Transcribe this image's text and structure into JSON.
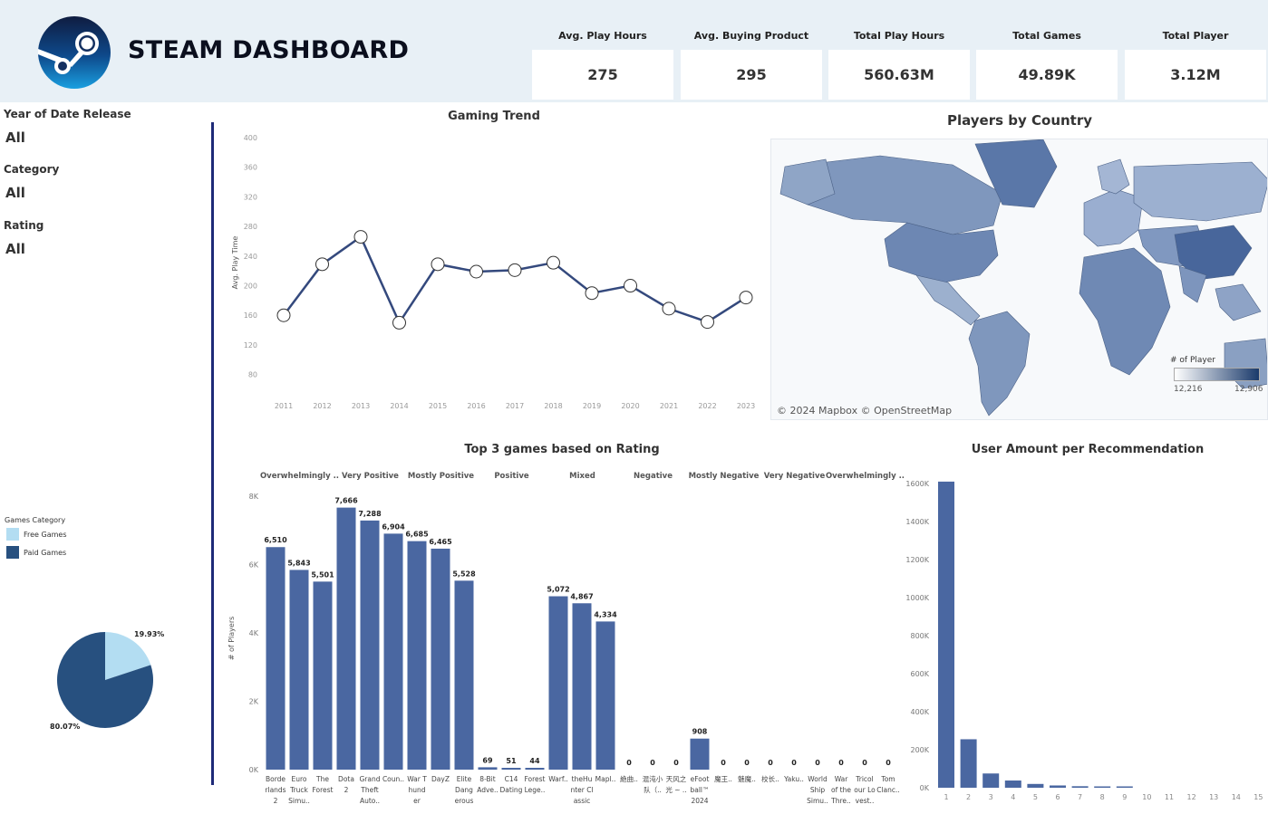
{
  "header": {
    "title": "STEAM DASHBOARD",
    "logo": "steam-logo"
  },
  "kpis": [
    {
      "label": "Avg. Play Hours",
      "value": "275"
    },
    {
      "label": "Avg. Buying Product",
      "value": "295"
    },
    {
      "label": "Total Play Hours",
      "value": "560.63M"
    },
    {
      "label": "Total Games",
      "value": "49.89K"
    },
    {
      "label": "Total Player",
      "value": "3.12M"
    }
  ],
  "filters": [
    {
      "label": "Year of Date Release",
      "value": "All"
    },
    {
      "label": "Category",
      "value": "All"
    },
    {
      "label": "Rating",
      "value": "All"
    }
  ],
  "colors": {
    "accent": "#1e2a78",
    "bar": "#4a67a1",
    "line": "#34497d",
    "free": "#b3ddf2",
    "paid": "#27507f",
    "header_bg": "#e8f0f6"
  },
  "map": {
    "title": "Players by Country",
    "credit": "© 2024 Mapbox © OpenStreetMap",
    "legend_title": "# of Player",
    "legend_min": "12,216",
    "legend_max": "12,906"
  },
  "pie_legend": {
    "title": "Games Category",
    "items": [
      "Free Games",
      "Paid Games"
    ]
  },
  "chart_data": [
    {
      "type": "line",
      "title": "Gaming Trend",
      "ylabel": "Avg. Play Time",
      "x": [
        "2011",
        "2012",
        "2013",
        "2014",
        "2015",
        "2016",
        "2017",
        "2018",
        "2019",
        "2020",
        "2021",
        "2022",
        "2023"
      ],
      "values": [
        160,
        229,
        266,
        150,
        229,
        219,
        221,
        231,
        190,
        200,
        169,
        151,
        184
      ],
      "yticks": [
        80,
        120,
        160,
        200,
        240,
        280,
        320,
        360,
        400
      ],
      "ylim": [
        60,
        400
      ]
    },
    {
      "type": "bar",
      "title": "Top 3 games based on Rating",
      "ylabel": "# of Players",
      "groups": [
        "Overwhelmingly ..",
        "Very Positive",
        "Mostly Positive",
        "Positive",
        "Mixed",
        "Negative",
        "Mostly Negative",
        "Very Negative",
        "Overwhelmingly .."
      ],
      "categories": [
        [
          "Borde",
          "rlands",
          "2"
        ],
        [
          "Euro",
          "Truck",
          "Simu.."
        ],
        [
          "The",
          "Forest"
        ],
        [
          "Dota",
          "2"
        ],
        [
          "Grand",
          "Theft",
          "Auto.."
        ],
        [
          "Coun.."
        ],
        [
          "War T",
          "hund",
          "er"
        ],
        [
          "DayZ"
        ],
        [
          "Elite",
          "Dang",
          "erous"
        ],
        [
          "8-Bit",
          "Adve.."
        ],
        [
          "C14",
          "Dating"
        ],
        [
          "Forest",
          "Lege.."
        ],
        [
          "Warf.."
        ],
        [
          "theHu",
          "nter Cl",
          "assic"
        ],
        [
          "Mapl.."
        ],
        [
          "絶曲.."
        ],
        [
          "混沌小",
          "队（.."
        ],
        [
          "天风之",
          "光 ~ .."
        ],
        [
          "eFoot",
          "ball™",
          "2024"
        ],
        [
          "魔王.."
        ],
        [
          "魅魔.."
        ],
        [
          "校长.."
        ],
        [
          "Yaku.."
        ],
        [
          "World",
          "Ship",
          "Simu.."
        ],
        [
          "War",
          "of the",
          "Thre.."
        ],
        [
          "Tricol",
          "our Lo",
          "vest.."
        ],
        [
          "Tom",
          "Clanc.."
        ]
      ],
      "values": [
        6510,
        5843,
        5501,
        7666,
        7288,
        6904,
        6685,
        6465,
        5528,
        69,
        51,
        44,
        5072,
        4867,
        4334,
        0,
        0,
        0,
        908,
        0,
        0,
        0,
        0,
        0,
        0,
        0,
        0
      ],
      "data_labels": [
        "6,510",
        "5,843",
        "5,501",
        "7,666",
        "7,288",
        "6,904",
        "6,685",
        "6,465",
        "5,528",
        "69",
        "51",
        "44",
        "5,072",
        "4,867",
        "4,334",
        "0",
        "0",
        "0",
        "908",
        "0",
        "0",
        "0",
        "0",
        "0",
        "0",
        "0",
        "0"
      ],
      "yticks": [
        "0K",
        "2K",
        "4K",
        "6K",
        "8K"
      ],
      "ylim": [
        0,
        8500
      ]
    },
    {
      "type": "bar",
      "title": "User  Amount per Recommendation",
      "categories": [
        "1",
        "2",
        "3",
        "4",
        "5",
        "6",
        "7",
        "8",
        "9",
        "10",
        "11",
        "12",
        "13",
        "14",
        "15"
      ],
      "values": [
        1610000,
        255000,
        75000,
        38000,
        20000,
        12000,
        8000,
        6000,
        5000,
        0,
        0,
        0,
        0,
        0,
        0
      ],
      "yticks": [
        "0K",
        "200K",
        "400K",
        "600K",
        "800K",
        "1000K",
        "1200K",
        "1400K",
        "1600K"
      ],
      "ylim": [
        0,
        1650000
      ]
    },
    {
      "type": "pie",
      "labels": [
        "Free Games",
        "Paid Games"
      ],
      "values": [
        19.93,
        80.07
      ],
      "data_labels": [
        "19.93%",
        "80.07%"
      ]
    }
  ]
}
